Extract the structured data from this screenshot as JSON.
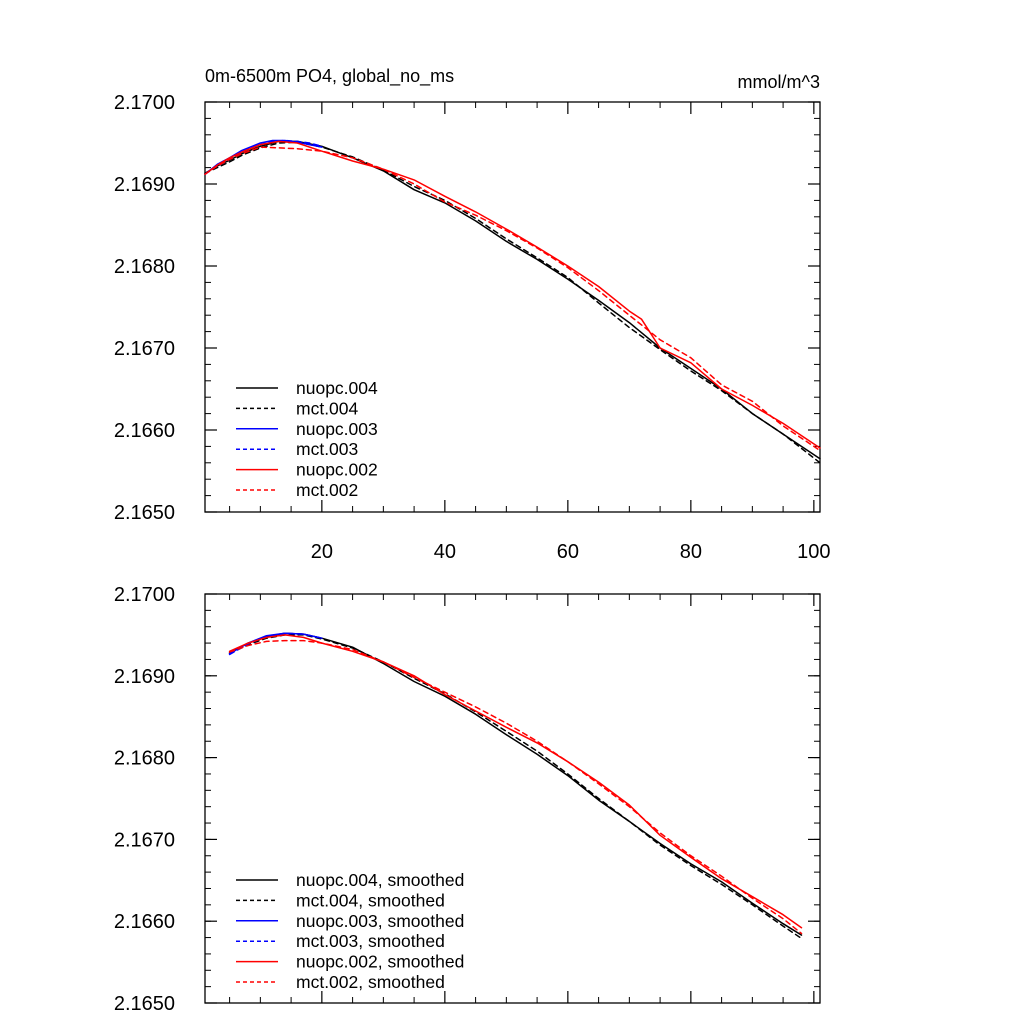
{
  "chart_data": [
    {
      "type": "line",
      "title": "0m-6500m PO4, global_no_ms",
      "units": "mmol/m^3",
      "xlim": [
        1,
        101
      ],
      "ylim": [
        2.165,
        2.17
      ],
      "xticks": [
        20,
        40,
        60,
        80,
        100
      ],
      "xtick_labels": [
        "20",
        "40",
        "60",
        "80",
        "100"
      ],
      "yticks": [
        2.165,
        2.166,
        2.167,
        2.168,
        2.169,
        2.17
      ],
      "ytick_labels": [
        "2.1650",
        "2.1660",
        "2.1670",
        "2.1680",
        "2.1690",
        "2.1700"
      ],
      "legend": "bottom-left",
      "series": [
        {
          "name": "nuopc.004",
          "color": "#000000",
          "dash": "solid",
          "x": [
            1,
            3,
            5,
            7,
            10,
            13,
            16,
            20,
            25,
            30,
            35,
            40,
            45,
            50,
            55,
            60,
            65,
            70,
            75,
            80,
            85,
            90,
            95,
            101
          ],
          "y": [
            2.16913,
            2.16922,
            2.16929,
            2.16937,
            2.16946,
            2.16952,
            2.16952,
            2.16946,
            2.16932,
            2.16916,
            2.16893,
            2.16877,
            2.16855,
            2.1683,
            2.16808,
            2.16784,
            2.16758,
            2.16731,
            2.167,
            2.16675,
            2.1665,
            2.1662,
            2.16595,
            2.16565
          ]
        },
        {
          "name": "mct.004",
          "color": "#000000",
          "dash": "dashed",
          "x": [
            1,
            3,
            5,
            7,
            10,
            13,
            16,
            20,
            25,
            30,
            35,
            40,
            45,
            50,
            55,
            60,
            65,
            70,
            75,
            80,
            85,
            90,
            95,
            101
          ],
          "y": [
            2.16913,
            2.1692,
            2.16927,
            2.16935,
            2.16944,
            2.1695,
            2.16951,
            2.16945,
            2.16933,
            2.16917,
            2.16897,
            2.1688,
            2.16858,
            2.16833,
            2.1681,
            2.16786,
            2.16755,
            2.16725,
            2.16698,
            2.16672,
            2.16648,
            2.1662,
            2.16595,
            2.1656
          ]
        },
        {
          "name": "nuopc.003",
          "color": "#0000ff",
          "dash": "solid",
          "x": [
            1,
            3,
            5,
            7,
            10,
            12,
            14,
            16,
            18,
            20
          ],
          "y": [
            2.16912,
            2.16924,
            2.16932,
            2.16941,
            2.1695,
            2.16953,
            2.16953,
            2.16951,
            2.16948,
            2.16945
          ]
        },
        {
          "name": "mct.003",
          "color": "#0000ff",
          "dash": "dashed",
          "x": [
            1,
            3,
            5,
            7,
            10,
            12,
            14,
            16,
            18,
            20
          ],
          "y": [
            2.16912,
            2.16922,
            2.1693,
            2.16939,
            2.16948,
            2.16952,
            2.16953,
            2.16952,
            2.1695,
            2.16946
          ]
        },
        {
          "name": "nuopc.002",
          "color": "#ff0000",
          "dash": "solid",
          "x": [
            1,
            3,
            5,
            7,
            10,
            13,
            16,
            20,
            25,
            30,
            35,
            40,
            45,
            50,
            55,
            60,
            65,
            70,
            72,
            75,
            80,
            85,
            90,
            95,
            101
          ],
          "y": [
            2.16912,
            2.16923,
            2.16932,
            2.16939,
            2.16948,
            2.16952,
            2.1695,
            2.1694,
            2.16928,
            2.16918,
            2.16905,
            2.16885,
            2.16866,
            2.16845,
            2.16823,
            2.168,
            2.16775,
            2.16745,
            2.16735,
            2.167,
            2.16682,
            2.1665,
            2.1663,
            2.16608,
            2.16578
          ]
        },
        {
          "name": "mct.002",
          "color": "#ff0000",
          "dash": "dashed",
          "x": [
            1,
            3,
            5,
            7,
            10,
            13,
            16,
            20,
            25,
            30,
            35,
            40,
            45,
            50,
            55,
            60,
            65,
            70,
            75,
            80,
            85,
            90,
            95,
            101
          ],
          "y": [
            2.16912,
            2.16922,
            2.1693,
            2.16937,
            2.16945,
            2.16944,
            2.16943,
            2.1694,
            2.16932,
            2.16918,
            2.169,
            2.16878,
            2.16862,
            2.16843,
            2.16822,
            2.16798,
            2.1677,
            2.1674,
            2.1671,
            2.16688,
            2.16655,
            2.16635,
            2.16605,
            2.16575
          ]
        }
      ]
    },
    {
      "type": "line",
      "xlim": [
        1,
        101
      ],
      "ylim": [
        2.165,
        2.17
      ],
      "xticks": [
        20,
        40,
        60,
        80,
        100
      ],
      "yticks": [
        2.165,
        2.166,
        2.167,
        2.168,
        2.169,
        2.17
      ],
      "ytick_labels": [
        "2.1650",
        "2.1660",
        "2.1670",
        "2.1680",
        "2.1690",
        "2.1700"
      ],
      "legend": "bottom-left",
      "series": [
        {
          "name": "nuopc.004, smoothed",
          "color": "#000000",
          "dash": "solid",
          "x": [
            5,
            8,
            11,
            14,
            17,
            20,
            25,
            30,
            35,
            40,
            45,
            50,
            55,
            60,
            65,
            70,
            75,
            80,
            85,
            90,
            95,
            98
          ],
          "y": [
            2.16928,
            2.1694,
            2.16948,
            2.16952,
            2.16951,
            2.16946,
            2.16935,
            2.16915,
            2.16893,
            2.16875,
            2.16853,
            2.16828,
            2.16804,
            2.16778,
            2.16748,
            2.16722,
            2.16695,
            2.1667,
            2.16648,
            2.16622,
            2.16597,
            2.16583
          ]
        },
        {
          "name": "mct.004, smoothed",
          "color": "#000000",
          "dash": "dashed",
          "x": [
            5,
            8,
            11,
            14,
            17,
            20,
            25,
            30,
            35,
            40,
            45,
            50,
            55,
            60,
            65,
            70,
            75,
            80,
            85,
            90,
            95,
            98
          ],
          "y": [
            2.16927,
            2.16938,
            2.16946,
            2.1695,
            2.1695,
            2.16945,
            2.16934,
            2.16917,
            2.16897,
            2.16878,
            2.16856,
            2.16832,
            2.16808,
            2.1678,
            2.1675,
            2.16722,
            2.16693,
            2.16668,
            2.16645,
            2.1662,
            2.16594,
            2.16579
          ]
        },
        {
          "name": "nuopc.003, smoothed",
          "color": "#0000ff",
          "dash": "solid",
          "x": [
            5,
            8,
            11,
            14,
            17,
            20
          ],
          "y": [
            2.16927,
            2.1694,
            2.16949,
            2.16952,
            2.16951,
            2.16946
          ]
        },
        {
          "name": "mct.003, smoothed",
          "color": "#0000ff",
          "dash": "dashed",
          "x": [
            5,
            8,
            11,
            14,
            17,
            20
          ],
          "y": [
            2.16926,
            2.16939,
            2.16948,
            2.16952,
            2.16951,
            2.16946
          ]
        },
        {
          "name": "nuopc.002, smoothed",
          "color": "#ff0000",
          "dash": "solid",
          "x": [
            5,
            8,
            11,
            14,
            17,
            20,
            25,
            30,
            35,
            40,
            45,
            50,
            55,
            60,
            65,
            70,
            75,
            80,
            85,
            90,
            95,
            98
          ],
          "y": [
            2.1693,
            2.1694,
            2.16947,
            2.1695,
            2.16947,
            2.1694,
            2.1693,
            2.16917,
            2.169,
            2.16877,
            2.16857,
            2.16837,
            2.16818,
            2.16795,
            2.1677,
            2.16742,
            2.16705,
            2.16678,
            2.16652,
            2.1663,
            2.16608,
            2.16592
          ]
        },
        {
          "name": "mct.002, smoothed",
          "color": "#ff0000",
          "dash": "dashed",
          "x": [
            5,
            8,
            11,
            14,
            17,
            20,
            25,
            30,
            35,
            40,
            45,
            50,
            55,
            60,
            65,
            70,
            75,
            80,
            85,
            90,
            95,
            98
          ],
          "y": [
            2.16929,
            2.16937,
            2.16942,
            2.16943,
            2.16943,
            2.1694,
            2.16932,
            2.16917,
            2.16898,
            2.1688,
            2.16862,
            2.16842,
            2.1682,
            2.16795,
            2.16768,
            2.1674,
            2.16708,
            2.1668,
            2.16655,
            2.16628,
            2.16603,
            2.16585
          ]
        }
      ]
    }
  ]
}
